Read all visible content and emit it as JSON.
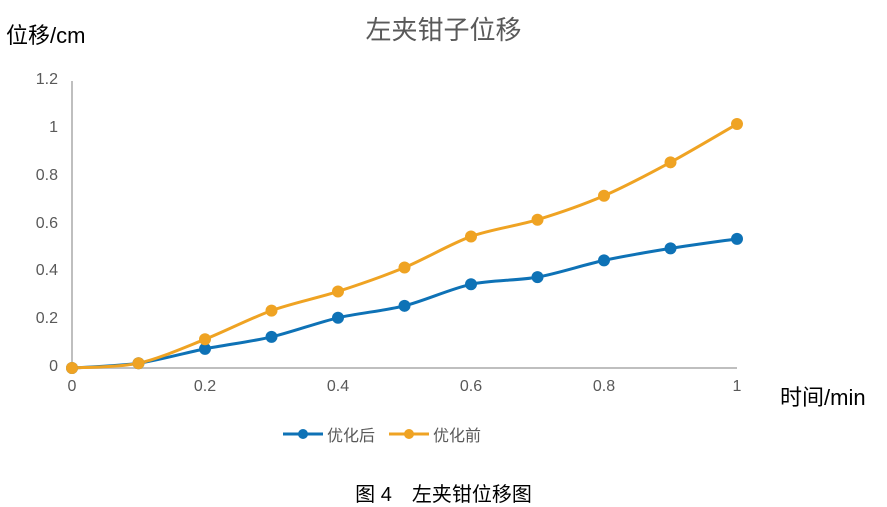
{
  "chart_data": {
    "type": "line",
    "title": "左夹钳子位移",
    "xlabel": "时间/min",
    "ylabel": "位移/cm",
    "x": [
      0,
      0.1,
      0.2,
      0.3,
      0.4,
      0.5,
      0.6,
      0.7,
      0.8,
      0.9,
      1.0
    ],
    "xticks": [
      "0",
      "0.2",
      "0.4",
      "0.6",
      "0.8",
      "1"
    ],
    "yticks": [
      "0",
      "0.2",
      "0.4",
      "0.6",
      "0.8",
      "1",
      "1.2"
    ],
    "xlim": [
      0,
      1
    ],
    "ylim": [
      0,
      1.2
    ],
    "grid": false,
    "legend_position": "bottom",
    "series": [
      {
        "name": "优化后",
        "color": "#0E72B6",
        "values": [
          0,
          0.02,
          0.08,
          0.13,
          0.21,
          0.26,
          0.35,
          0.38,
          0.45,
          0.5,
          0.54
        ]
      },
      {
        "name": "优化前",
        "color": "#EFA323",
        "values": [
          0,
          0.02,
          0.12,
          0.24,
          0.32,
          0.42,
          0.55,
          0.62,
          0.72,
          0.86,
          1.02
        ]
      }
    ]
  },
  "caption": "图 4　左夹钳位移图"
}
